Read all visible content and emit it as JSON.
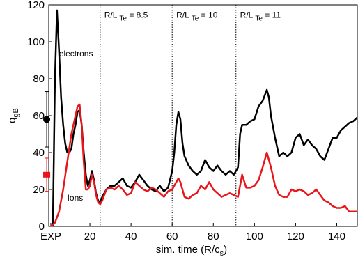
{
  "chart_data": {
    "type": "line",
    "x_label": {
      "text": "sim. time (R/c",
      "sub": "s",
      "after": ")"
    },
    "y_label": {
      "text": "q",
      "sub": "gB"
    },
    "xlim": [
      0,
      150
    ],
    "ylim": [
      0,
      120
    ],
    "xticks": [
      {
        "value": 1,
        "label": "EXP"
      },
      20,
      40,
      60,
      80,
      100,
      120,
      140
    ],
    "yticks": [
      0,
      20,
      40,
      60,
      80,
      100,
      120
    ],
    "vlines": [
      25,
      60,
      91
    ],
    "annotations": [
      {
        "text": "R/L",
        "sub": "Te",
        "after": " = 8.5",
        "x": 27,
        "y": 113
      },
      {
        "text": "R/L",
        "sub": "Te",
        "after": " = 10",
        "x": 62,
        "y": 113
      },
      {
        "text": "R/L",
        "sub": "Te",
        "after": " = 11",
        "x": 93,
        "y": 113
      }
    ],
    "series": [
      {
        "name": "electrons",
        "color": "#000000",
        "label_x": 5,
        "label_y": 92,
        "x": [
          2,
          3,
          4,
          5,
          6,
          7,
          8,
          9,
          10,
          11,
          12,
          13,
          14,
          15,
          16,
          17,
          18,
          19,
          20,
          21,
          22,
          23,
          24,
          25,
          26,
          28,
          30,
          32,
          34,
          36,
          38,
          40,
          42,
          44,
          46,
          48,
          50,
          52,
          54,
          56,
          58,
          60,
          61,
          62,
          63,
          64,
          65,
          66,
          68,
          70,
          72,
          74,
          76,
          78,
          80,
          82,
          84,
          86,
          88,
          90,
          92,
          93,
          94,
          96,
          98,
          100,
          102,
          104,
          106,
          107,
          108,
          110,
          112,
          114,
          116,
          118,
          120,
          122,
          124,
          126,
          128,
          130,
          132,
          134,
          136,
          138,
          140,
          142,
          144,
          146,
          148,
          150
        ],
        "y": [
          0,
          80,
          117,
          95,
          70,
          55,
          45,
          40,
          40,
          42,
          50,
          55,
          62,
          63,
          55,
          40,
          28,
          22,
          25,
          30,
          25,
          18,
          14,
          13,
          16,
          20,
          22,
          22,
          24,
          26,
          22,
          21,
          24,
          28,
          25,
          22,
          20,
          19,
          22,
          19,
          21,
          30,
          40,
          55,
          62,
          58,
          45,
          38,
          33,
          30,
          28,
          30,
          36,
          32,
          30,
          33,
          30,
          28,
          30,
          28,
          32,
          50,
          55,
          55,
          57,
          58,
          65,
          68,
          74,
          70,
          60,
          48,
          38,
          40,
          38,
          40,
          48,
          50,
          44,
          47,
          44,
          42,
          38,
          36,
          42,
          48,
          48,
          52,
          54,
          56,
          57,
          59
        ]
      },
      {
        "name": "Ions",
        "color": "#e8161b",
        "label_x": 9,
        "label_y": 14,
        "x": [
          1,
          3,
          5,
          7,
          9,
          11,
          13,
          14,
          15,
          16,
          17,
          18,
          19,
          20,
          21,
          22,
          23,
          24,
          25,
          26,
          28,
          30,
          32,
          34,
          36,
          38,
          40,
          42,
          44,
          46,
          48,
          50,
          52,
          54,
          56,
          58,
          60,
          62,
          63,
          64,
          66,
          68,
          70,
          72,
          74,
          76,
          78,
          80,
          82,
          84,
          86,
          88,
          90,
          92,
          94,
          96,
          98,
          100,
          102,
          104,
          106,
          108,
          110,
          112,
          114,
          116,
          118,
          120,
          122,
          124,
          126,
          128,
          130,
          132,
          134,
          136,
          138,
          140,
          142,
          144,
          146,
          148,
          150
        ],
        "y": [
          0,
          2,
          8,
          20,
          35,
          50,
          60,
          65,
          66,
          55,
          35,
          20,
          20,
          22,
          28,
          24,
          17,
          13,
          12,
          14,
          20,
          21,
          20,
          22,
          20,
          17,
          18,
          24,
          22,
          20,
          19,
          21,
          20,
          18,
          16,
          19,
          20,
          24,
          26,
          24,
          16,
          15,
          17,
          18,
          22,
          20,
          24,
          20,
          18,
          16,
          17,
          18,
          17,
          16,
          28,
          21,
          21,
          22,
          25,
          32,
          40,
          32,
          22,
          17,
          16,
          16,
          20,
          19,
          20,
          19,
          17,
          18,
          20,
          17,
          14,
          13,
          11,
          10,
          10,
          11,
          8,
          8,
          8
        ]
      }
    ],
    "experiment": {
      "x": -1,
      "values": [
        58,
        28
      ],
      "errors": [
        15,
        9
      ],
      "colors": [
        "#000000",
        "#e8161b"
      ],
      "markers": [
        "circle",
        "square"
      ]
    }
  }
}
